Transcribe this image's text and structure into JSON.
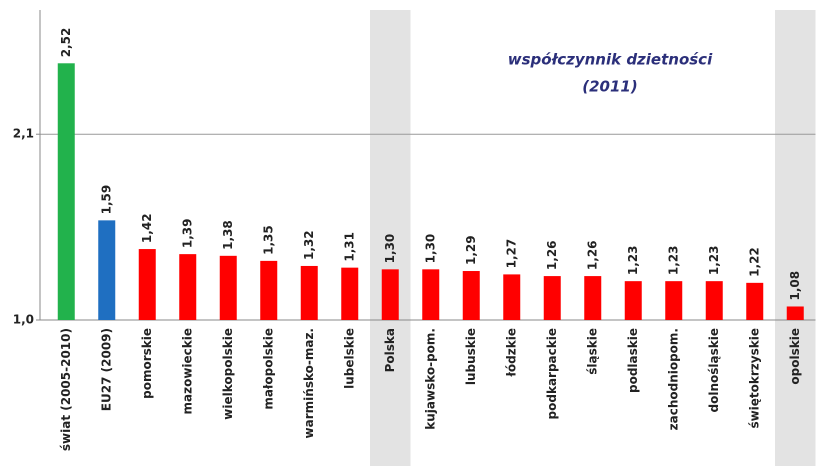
{
  "chart_data": {
    "type": "bar",
    "title": "współczynnik dzietności",
    "subtitle": "(2011)",
    "categories": [
      "świat (2005-2010)",
      "EU27 (2009)",
      "pomorskie",
      "mazowieckie",
      "wielkopolskie",
      "małopolskie",
      "warmińsko-maz.",
      "lubelskie",
      "Polska",
      "kujawsko-pom.",
      "lubuskie",
      "łódzkie",
      "podkarpackie",
      "śląskie",
      "podlaskie",
      "zachodniopom.",
      "dolnośląskie",
      "świętokrzyskie",
      "opolskie"
    ],
    "values": [
      2.52,
      1.59,
      1.42,
      1.39,
      1.38,
      1.35,
      1.32,
      1.31,
      1.3,
      1.3,
      1.29,
      1.27,
      1.26,
      1.26,
      1.23,
      1.23,
      1.23,
      1.22,
      1.08
    ],
    "value_labels": [
      "2,52",
      "1,59",
      "1,42",
      "1,39",
      "1,38",
      "1,35",
      "1,32",
      "1,31",
      "1,30",
      "1,30",
      "1,29",
      "1,27",
      "1,26",
      "1,26",
      "1,23",
      "1,23",
      "1,23",
      "1,22",
      "1,08"
    ],
    "colors": [
      "#22b24c",
      "#1f6fc1",
      "#ff0000",
      "#ff0000",
      "#ff0000",
      "#ff0000",
      "#ff0000",
      "#ff0000",
      "#ff0000",
      "#ff0000",
      "#ff0000",
      "#ff0000",
      "#ff0000",
      "#ff0000",
      "#ff0000",
      "#ff0000",
      "#ff0000",
      "#ff0000",
      "#ff0000"
    ],
    "highlighted": [
      "Polska",
      "opolskie"
    ],
    "highlight_color": "#e3e3e3",
    "ylim": [
      1.0,
      2.8
    ],
    "yticks": [
      {
        "value": 1.0,
        "label": "1,0"
      },
      {
        "value": 2.1,
        "label": "2,1"
      }
    ],
    "grid": true
  }
}
